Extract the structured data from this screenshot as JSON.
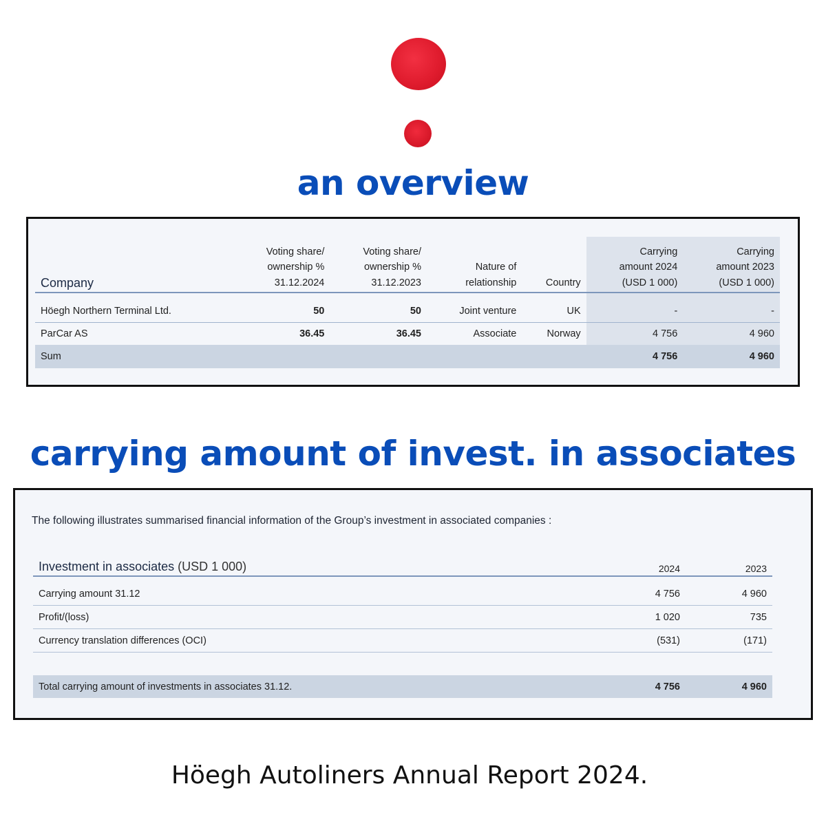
{
  "headings": {
    "overview": "an overview",
    "carrying": "carrying amount of invest. in associates"
  },
  "overview_table": {
    "columns": {
      "company": "Company",
      "voting_2024": [
        "Voting share/",
        "ownership %",
        "31.12.2024"
      ],
      "voting_2023": [
        "Voting share/",
        "ownership %",
        "31.12.2023"
      ],
      "nature": [
        "Nature of",
        "relationship"
      ],
      "country": "Country",
      "carrying_2024": [
        "Carrying",
        "amount 2024",
        "(USD 1 000)"
      ],
      "carrying_2023": [
        "Carrying",
        "amount 2023",
        "(USD 1 000)"
      ]
    },
    "rows": [
      {
        "company": "Höegh Northern Terminal Ltd.",
        "voting_2024": "50",
        "voting_2023": "50",
        "nature": "Joint venture",
        "country": "UK",
        "carrying_2024": "-",
        "carrying_2023": "-"
      },
      {
        "company": "ParCar AS",
        "voting_2024": "36.45",
        "voting_2023": "36.45",
        "nature": "Associate",
        "country": "Norway",
        "carrying_2024": "4 756",
        "carrying_2023": "4 960"
      }
    ],
    "sum": {
      "label": "Sum",
      "carrying_2024": "4 756",
      "carrying_2023": "4 960"
    }
  },
  "associates_table": {
    "intro": "The following illustrates summarised financial information of the Group’s investment in associated companies :",
    "title_bold": "Investment in associates",
    "title_unit": "(USD 1 000)",
    "years": [
      "2024",
      "2023"
    ],
    "rows": [
      {
        "label": "Carrying amount 31.12",
        "v2024": "4 756",
        "v2023": "4 960"
      },
      {
        "label": "Profit/(loss)",
        "v2024": "1 020",
        "v2023": "735"
      },
      {
        "label": "Currency translation differences (OCI)",
        "v2024": "(531)",
        "v2023": "(171)"
      }
    ],
    "total": {
      "label": "Total carrying amount of investments in associates 31.12.",
      "v2024": "4 756",
      "v2023": "4 960"
    }
  },
  "footer": "Höegh Autoliners Annual Report 2024.",
  "colors": {
    "heading": "#0a4db8",
    "dot": "#e01c2e",
    "panel": "#f4f6fa",
    "shade": "#cbd5e2"
  }
}
